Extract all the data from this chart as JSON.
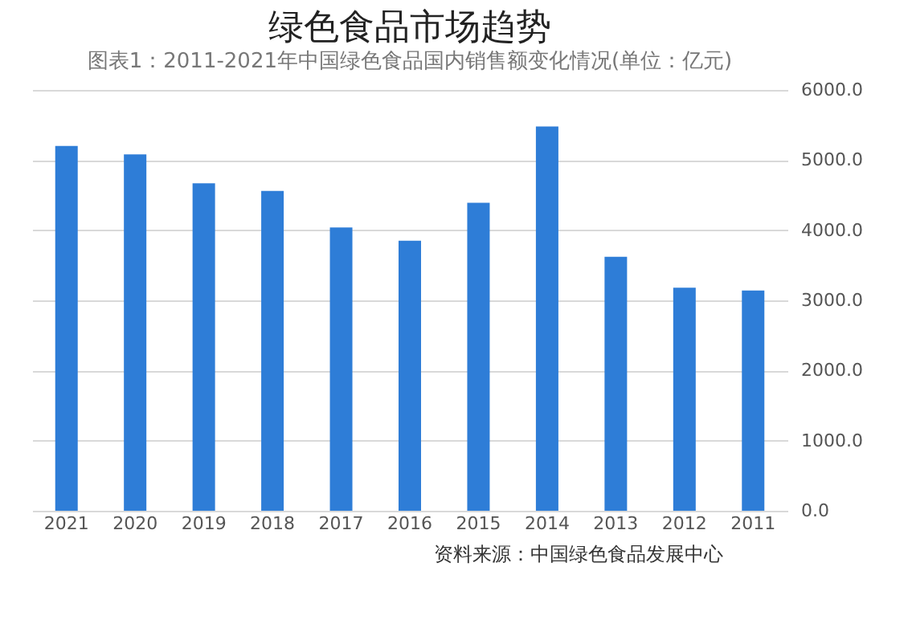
{
  "chart_data": {
    "type": "bar",
    "title": "绿色食品市场趋势",
    "subtitle": "图表1：2011-2021年中国绿色食品国内销售额变化情况(单位：亿元)",
    "categories": [
      "2021",
      "2020",
      "2019",
      "2018",
      "2017",
      "2016",
      "2015",
      "2014",
      "2013",
      "2012",
      "2011"
    ],
    "values": [
      5200,
      5080,
      4670,
      4560,
      4040,
      3850,
      4390,
      5480,
      3620,
      3180,
      3140
    ],
    "color": "#2e7dd7",
    "ylim": [
      0,
      6000
    ],
    "yticks": [
      {
        "value": 0,
        "label": "0.0"
      },
      {
        "value": 1000,
        "label": "1000.0"
      },
      {
        "value": 2000,
        "label": "2000.0"
      },
      {
        "value": 3000,
        "label": "3000.0"
      },
      {
        "value": 4000,
        "label": "4000.0"
      },
      {
        "value": 5000,
        "label": "5000.0"
      },
      {
        "value": 6000,
        "label": "6000.0"
      }
    ],
    "grid": "y",
    "annotations": [
      "资料来源：中国绿色食品发展中心"
    ]
  }
}
